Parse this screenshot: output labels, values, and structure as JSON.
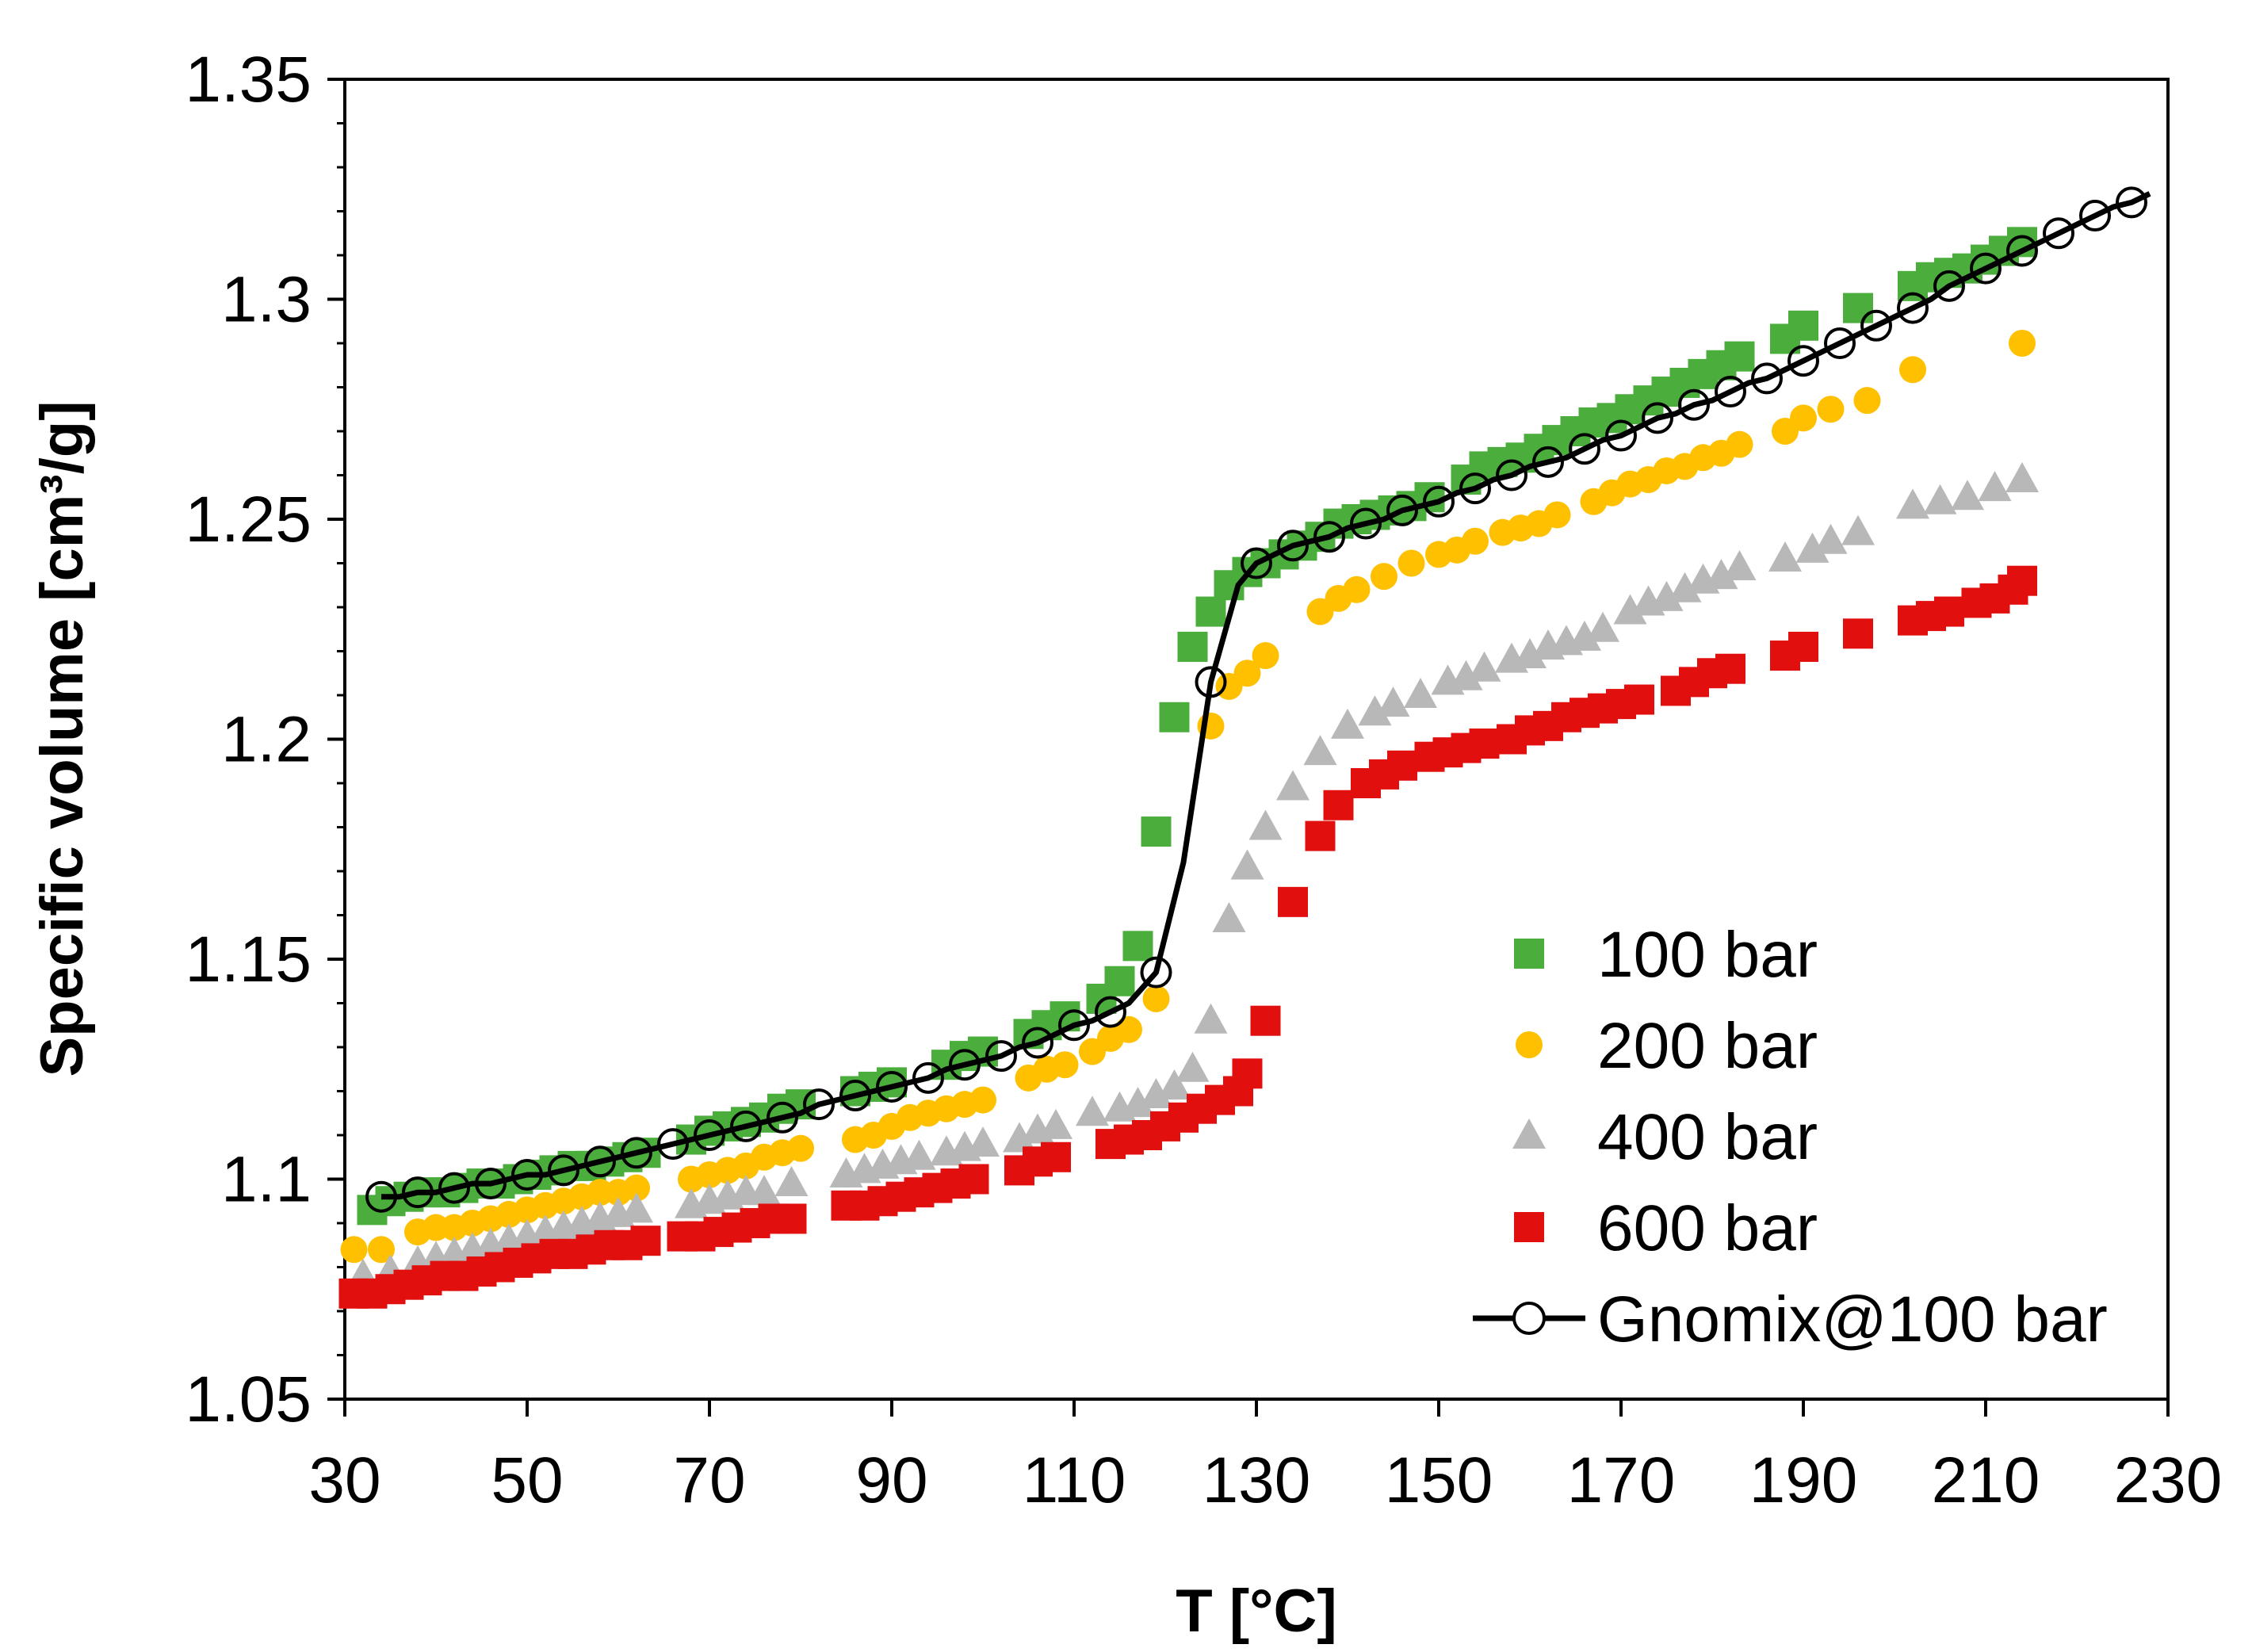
{
  "chart_data": {
    "type": "scatter",
    "title": "",
    "xlabel": "T [°C]",
    "ylabel": "Specific volume [cm³/g]",
    "xlim": [
      30,
      230
    ],
    "ylim": [
      1.05,
      1.35
    ],
    "xticks": [
      30,
      50,
      70,
      90,
      110,
      130,
      150,
      170,
      190,
      210,
      230
    ],
    "xtick_labels": [
      "30",
      "50",
      "70",
      "90",
      "110",
      "130",
      "150",
      "170",
      "190",
      "210",
      "230"
    ],
    "yticks": [
      1.05,
      1.1,
      1.15,
      1.2,
      1.25,
      1.3,
      1.35
    ],
    "ytick_labels": [
      "1.05",
      "1.1",
      "1.15",
      "1.2",
      "1.25",
      "1.3",
      "1.35"
    ],
    "grid": false,
    "legend_position": "right",
    "series": [
      {
        "name": "100 bar",
        "marker": "square",
        "color": "#4aad3c",
        "x": [
          33,
          35,
          37,
          39,
          41,
          43,
          45,
          47,
          49,
          51,
          53,
          55,
          57,
          59,
          61,
          63,
          68,
          70,
          72,
          74,
          76,
          78,
          80,
          86,
          88,
          90,
          96,
          98,
          100,
          105,
          107,
          109,
          113,
          115,
          117,
          119,
          121,
          123,
          125,
          127,
          129,
          131,
          133,
          135,
          137,
          139,
          141,
          143,
          145,
          147,
          149,
          153,
          155,
          157,
          159,
          161,
          163,
          165,
          167,
          169,
          171,
          173,
          175,
          177,
          179,
          181,
          183,
          188,
          190,
          196,
          202,
          204,
          206,
          208,
          210,
          212,
          214
        ],
        "y": [
          1.093,
          1.095,
          1.096,
          1.097,
          1.097,
          1.098,
          1.099,
          1.099,
          1.1,
          1.101,
          1.102,
          1.103,
          1.103,
          1.104,
          1.105,
          1.106,
          1.109,
          1.111,
          1.112,
          1.113,
          1.114,
          1.116,
          1.117,
          1.12,
          1.121,
          1.122,
          1.126,
          1.128,
          1.129,
          1.133,
          1.135,
          1.137,
          1.141,
          1.145,
          1.153,
          1.179,
          1.205,
          1.221,
          1.229,
          1.235,
          1.238,
          1.24,
          1.242,
          1.244,
          1.246,
          1.249,
          1.25,
          1.251,
          1.252,
          1.253,
          1.255,
          1.259,
          1.262,
          1.263,
          1.264,
          1.266,
          1.268,
          1.27,
          1.272,
          1.273,
          1.275,
          1.277,
          1.279,
          1.281,
          1.283,
          1.285,
          1.287,
          1.291,
          1.294,
          1.298,
          1.303,
          1.305,
          1.306,
          1.307,
          1.309,
          1.311,
          1.313
        ]
      },
      {
        "name": "200 bar",
        "marker": "circle",
        "color": "#ffc000",
        "x": [
          31,
          34,
          38,
          40,
          42,
          44,
          46,
          48,
          50,
          52,
          54,
          56,
          58,
          60,
          62,
          68,
          70,
          72,
          74,
          76,
          78,
          80,
          86,
          88,
          90,
          92,
          94,
          96,
          98,
          100,
          105,
          107,
          109,
          112,
          114,
          116,
          119,
          125,
          127,
          129,
          131,
          137,
          139,
          141,
          144,
          147,
          150,
          152,
          154,
          157,
          159,
          161,
          163,
          167,
          169,
          171,
          173,
          175,
          177,
          179,
          181,
          183,
          188,
          190,
          193,
          197,
          202,
          214
        ],
        "y": [
          1.084,
          1.084,
          1.088,
          1.089,
          1.089,
          1.09,
          1.091,
          1.092,
          1.093,
          1.094,
          1.095,
          1.096,
          1.097,
          1.097,
          1.098,
          1.1,
          1.101,
          1.102,
          1.103,
          1.105,
          1.106,
          1.107,
          1.109,
          1.11,
          1.112,
          1.114,
          1.115,
          1.116,
          1.117,
          1.118,
          1.123,
          1.125,
          1.126,
          1.129,
          1.132,
          1.134,
          1.141,
          1.203,
          1.212,
          1.215,
          1.219,
          1.229,
          1.232,
          1.234,
          1.237,
          1.24,
          1.242,
          1.243,
          1.245,
          1.247,
          1.248,
          1.249,
          1.251,
          1.254,
          1.256,
          1.258,
          1.259,
          1.261,
          1.262,
          1.264,
          1.265,
          1.267,
          1.27,
          1.273,
          1.275,
          1.277,
          1.284,
          1.29
        ]
      },
      {
        "name": "400 bar",
        "marker": "triangle",
        "color": "#b8b8b8",
        "x": [
          32,
          35,
          38,
          40,
          42,
          44,
          46,
          48,
          50,
          52,
          54,
          56,
          58,
          60,
          62,
          68,
          70,
          72,
          74,
          76,
          79,
          85,
          87,
          89,
          91,
          93,
          96,
          98,
          100,
          104,
          106,
          108,
          112,
          115,
          117,
          119,
          121,
          123,
          125,
          127,
          129,
          131,
          134,
          137,
          140,
          143,
          145,
          148,
          151,
          153,
          155,
          158,
          160,
          162,
          164,
          166,
          168,
          171,
          173,
          175,
          177,
          179,
          181,
          183,
          188,
          191,
          193,
          196,
          202,
          205,
          208,
          211,
          214
        ],
        "y": [
          1.078,
          1.079,
          1.081,
          1.082,
          1.083,
          1.084,
          1.085,
          1.086,
          1.087,
          1.088,
          1.089,
          1.09,
          1.091,
          1.092,
          1.093,
          1.094,
          1.095,
          1.096,
          1.097,
          1.097,
          1.099,
          1.101,
          1.102,
          1.103,
          1.104,
          1.105,
          1.106,
          1.107,
          1.108,
          1.109,
          1.111,
          1.112,
          1.115,
          1.116,
          1.117,
          1.119,
          1.121,
          1.125,
          1.136,
          1.159,
          1.171,
          1.18,
          1.189,
          1.197,
          1.203,
          1.206,
          1.208,
          1.21,
          1.213,
          1.214,
          1.216,
          1.218,
          1.219,
          1.221,
          1.222,
          1.223,
          1.225,
          1.229,
          1.231,
          1.232,
          1.234,
          1.236,
          1.237,
          1.239,
          1.241,
          1.243,
          1.245,
          1.247,
          1.253,
          1.254,
          1.255,
          1.257,
          1.259
        ]
      },
      {
        "name": "600 bar",
        "marker": "square",
        "color": "#e20f0f",
        "x": [
          31,
          33,
          35,
          37,
          39,
          41,
          43,
          45,
          47,
          49,
          51,
          53,
          55,
          57,
          59,
          61,
          63,
          67,
          69,
          71,
          73,
          75,
          77,
          79,
          85,
          87,
          89,
          91,
          93,
          95,
          97,
          99,
          104,
          106,
          108,
          114,
          116,
          118,
          120,
          122,
          124,
          126,
          128,
          129,
          131,
          134,
          137,
          139,
          142,
          144,
          146,
          149,
          151,
          153,
          155,
          158,
          160,
          162,
          164,
          166,
          168,
          170,
          172,
          176,
          178,
          180,
          182,
          188,
          190,
          196,
          202,
          204,
          206,
          209,
          211,
          213,
          214
        ],
        "y": [
          1.074,
          1.074,
          1.075,
          1.076,
          1.077,
          1.078,
          1.078,
          1.079,
          1.08,
          1.081,
          1.082,
          1.083,
          1.083,
          1.084,
          1.085,
          1.085,
          1.086,
          1.087,
          1.087,
          1.088,
          1.089,
          1.09,
          1.091,
          1.091,
          1.094,
          1.094,
          1.095,
          1.096,
          1.097,
          1.098,
          1.099,
          1.1,
          1.102,
          1.104,
          1.105,
          1.108,
          1.109,
          1.11,
          1.112,
          1.114,
          1.116,
          1.118,
          1.12,
          1.124,
          1.136,
          1.163,
          1.178,
          1.185,
          1.19,
          1.192,
          1.194,
          1.196,
          1.197,
          1.198,
          1.199,
          1.2,
          1.202,
          1.203,
          1.205,
          1.206,
          1.207,
          1.208,
          1.209,
          1.211,
          1.213,
          1.215,
          1.216,
          1.219,
          1.221,
          1.224,
          1.227,
          1.228,
          1.229,
          1.231,
          1.232,
          1.234,
          1.236
        ]
      },
      {
        "name": "Gnomix@100 bar",
        "marker": "open-circle-line",
        "color": "#000000",
        "x": [
          34,
          36,
          38,
          40,
          42,
          44,
          46,
          48,
          50,
          52,
          54,
          56,
          58,
          60,
          62,
          64,
          66,
          68,
          70,
          72,
          74,
          76,
          78,
          80,
          82,
          84,
          86,
          88,
          90,
          92,
          94,
          96,
          98,
          100,
          102,
          104,
          106,
          108,
          110,
          112,
          114,
          116,
          119,
          122,
          125,
          128,
          130,
          132,
          134,
          136,
          138,
          140,
          142,
          144,
          146,
          148,
          150,
          152,
          154,
          156,
          158,
          160,
          162,
          164,
          166,
          168,
          170,
          172,
          174,
          176,
          178,
          180,
          182,
          184,
          186,
          188,
          190,
          192,
          194,
          196,
          198,
          200,
          202,
          204,
          206,
          208,
          210,
          212,
          214,
          216,
          218,
          220,
          222,
          224,
          226,
          228
        ],
        "y": [
          1.096,
          1.096,
          1.097,
          1.097,
          1.098,
          1.099,
          1.099,
          1.1,
          1.101,
          1.101,
          1.102,
          1.103,
          1.104,
          1.105,
          1.106,
          1.107,
          1.108,
          1.109,
          1.11,
          1.111,
          1.112,
          1.113,
          1.114,
          1.115,
          1.117,
          1.118,
          1.119,
          1.12,
          1.121,
          1.122,
          1.123,
          1.125,
          1.126,
          1.127,
          1.128,
          1.13,
          1.131,
          1.133,
          1.135,
          1.136,
          1.138,
          1.14,
          1.147,
          1.172,
          1.213,
          1.235,
          1.24,
          1.242,
          1.244,
          1.245,
          1.246,
          1.248,
          1.249,
          1.25,
          1.252,
          1.253,
          1.254,
          1.256,
          1.257,
          1.259,
          1.26,
          1.262,
          1.263,
          1.264,
          1.266,
          1.268,
          1.269,
          1.271,
          1.273,
          1.274,
          1.276,
          1.277,
          1.279,
          1.281,
          1.282,
          1.284,
          1.286,
          1.288,
          1.29,
          1.292,
          1.294,
          1.296,
          1.298,
          1.3,
          1.303,
          1.305,
          1.307,
          1.309,
          1.311,
          1.313,
          1.315,
          1.317,
          1.319,
          1.321,
          1.322,
          1.324
        ]
      }
    ]
  }
}
